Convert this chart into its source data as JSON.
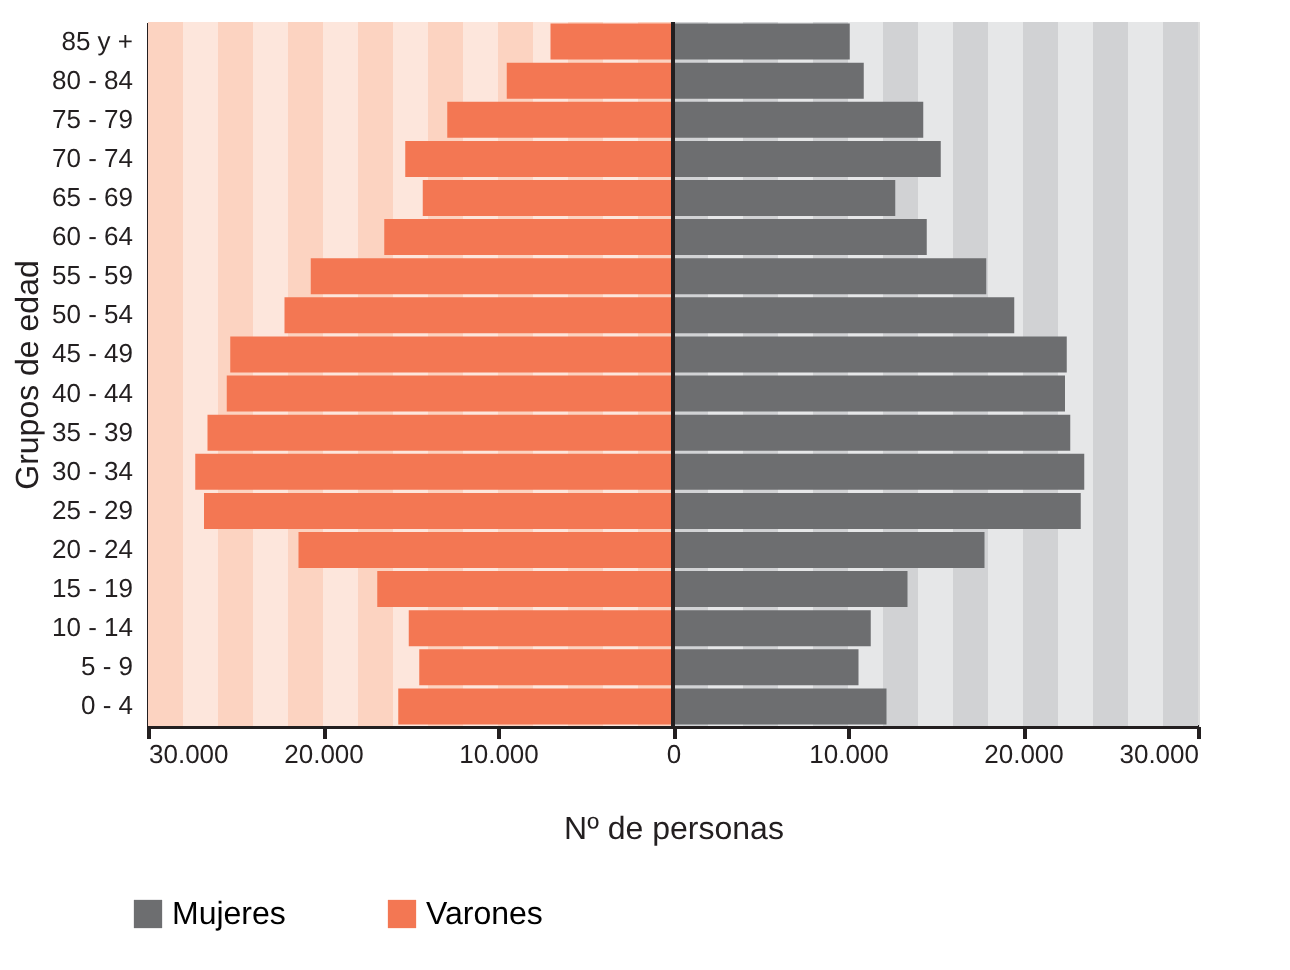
{
  "chart_data": {
    "type": "bar",
    "orientation": "horizontal",
    "stacked": true,
    "xlabel": "Nº de personas",
    "ylabel": "Grupos de edad",
    "categories": [
      "85  y +",
      "80 - 84",
      "75 - 79",
      "70 - 74",
      "65 - 69",
      "60 - 64",
      "55 - 59",
      "50 - 54",
      "45 - 49",
      "40 - 44",
      "35 - 39",
      "30 - 34",
      "25 - 29",
      "20 - 24",
      "15 - 19",
      "10 - 14",
      "5 - 9",
      "0 - 4"
    ],
    "series": [
      {
        "name": "Mujeres",
        "color": "#6d6e70",
        "values": [
          10100,
          10900,
          14300,
          15300,
          12700,
          14500,
          17900,
          19500,
          22500,
          22400,
          22700,
          23500,
          23300,
          17800,
          13400,
          11300,
          10600,
          12200
        ]
      },
      {
        "name": "Varones",
        "color": "#f37753",
        "values": [
          -7000,
          -9500,
          -12900,
          -15300,
          -14300,
          -16500,
          -20700,
          -22200,
          -25300,
          -25500,
          -26600,
          -27300,
          -26800,
          -21400,
          -16900,
          -15100,
          -14500,
          -15700
        ]
      }
    ],
    "xlim": [
      -30000,
      30000
    ],
    "xticks": [
      {
        "value": -30000,
        "label": "30.000"
      },
      {
        "value": -20000,
        "label": "20.000"
      },
      {
        "value": -10000,
        "label": "10.000"
      },
      0,
      {
        "value": 10000,
        "label": "10.000"
      },
      {
        "value": 20000,
        "label": "20.000"
      },
      {
        "value": 30000,
        "label": "30.000"
      }
    ],
    "bands": [
      {
        "axis": "x",
        "from": -30000,
        "to": -28000,
        "color": "#fcd3c1"
      },
      {
        "axis": "x",
        "from": -28000,
        "to": -26000,
        "color": "#fde6dc"
      },
      {
        "axis": "x",
        "from": -26000,
        "to": -24000,
        "color": "#fcd3c1"
      },
      {
        "axis": "x",
        "from": -24000,
        "to": -22000,
        "color": "#fde6dc"
      },
      {
        "axis": "x",
        "from": -22000,
        "to": -20000,
        "color": "#fcd3c1"
      },
      {
        "axis": "x",
        "from": -20000,
        "to": -18000,
        "color": "#fde6dc"
      },
      {
        "axis": "x",
        "from": -18000,
        "to": -16000,
        "color": "#fcd3c1"
      },
      {
        "axis": "x",
        "from": -16000,
        "to": -14000,
        "color": "#fde6dc"
      },
      {
        "axis": "x",
        "from": -14000,
        "to": -12000,
        "color": "#fcd3c1"
      },
      {
        "axis": "x",
        "from": -12000,
        "to": -10000,
        "color": "#fde6dc"
      },
      {
        "axis": "x",
        "from": -10000,
        "to": -8000,
        "color": "#fcd3c1"
      },
      {
        "axis": "x",
        "from": -8000,
        "to": -6000,
        "color": "#fde6dc"
      },
      {
        "axis": "x",
        "from": -6000,
        "to": -4000,
        "color": "#fcd3c1"
      },
      {
        "axis": "x",
        "from": -4000,
        "to": -2000,
        "color": "#fde6dc"
      },
      {
        "axis": "x",
        "from": -2000,
        "to": 0,
        "color": "#fcd3c1"
      },
      {
        "axis": "x",
        "from": 0,
        "to": 2000,
        "color": "#d1d2d4"
      },
      {
        "axis": "x",
        "from": 2000,
        "to": 4000,
        "color": "#e6e7e8"
      },
      {
        "axis": "x",
        "from": 4000,
        "to": 6000,
        "color": "#d1d2d4"
      },
      {
        "axis": "x",
        "from": 6000,
        "to": 8000,
        "color": "#e6e7e8"
      },
      {
        "axis": "x",
        "from": 8000,
        "to": 10000,
        "color": "#d1d2d4"
      },
      {
        "axis": "x",
        "from": 10000,
        "to": 12000,
        "color": "#e6e7e8"
      },
      {
        "axis": "x",
        "from": 12000,
        "to": 14000,
        "color": "#d1d2d4"
      },
      {
        "axis": "x",
        "from": 14000,
        "to": 16000,
        "color": "#e6e7e8"
      },
      {
        "axis": "x",
        "from": 16000,
        "to": 18000,
        "color": "#d1d2d4"
      },
      {
        "axis": "x",
        "from": 18000,
        "to": 20000,
        "color": "#e6e7e8"
      },
      {
        "axis": "x",
        "from": 20000,
        "to": 22000,
        "color": "#d1d2d4"
      },
      {
        "axis": "x",
        "from": 22000,
        "to": 24000,
        "color": "#e6e7e8"
      },
      {
        "axis": "x",
        "from": 24000,
        "to": 26000,
        "color": "#d1d2d4"
      },
      {
        "axis": "x",
        "from": 26000,
        "to": 28000,
        "color": "#e6e7e8"
      },
      {
        "axis": "x",
        "from": 28000,
        "to": 30000,
        "color": "#d1d2d4"
      }
    ],
    "ref_lines": [
      {
        "axis": "x",
        "value": 0,
        "color": "#231f20"
      }
    ],
    "legend": "bottom left"
  }
}
